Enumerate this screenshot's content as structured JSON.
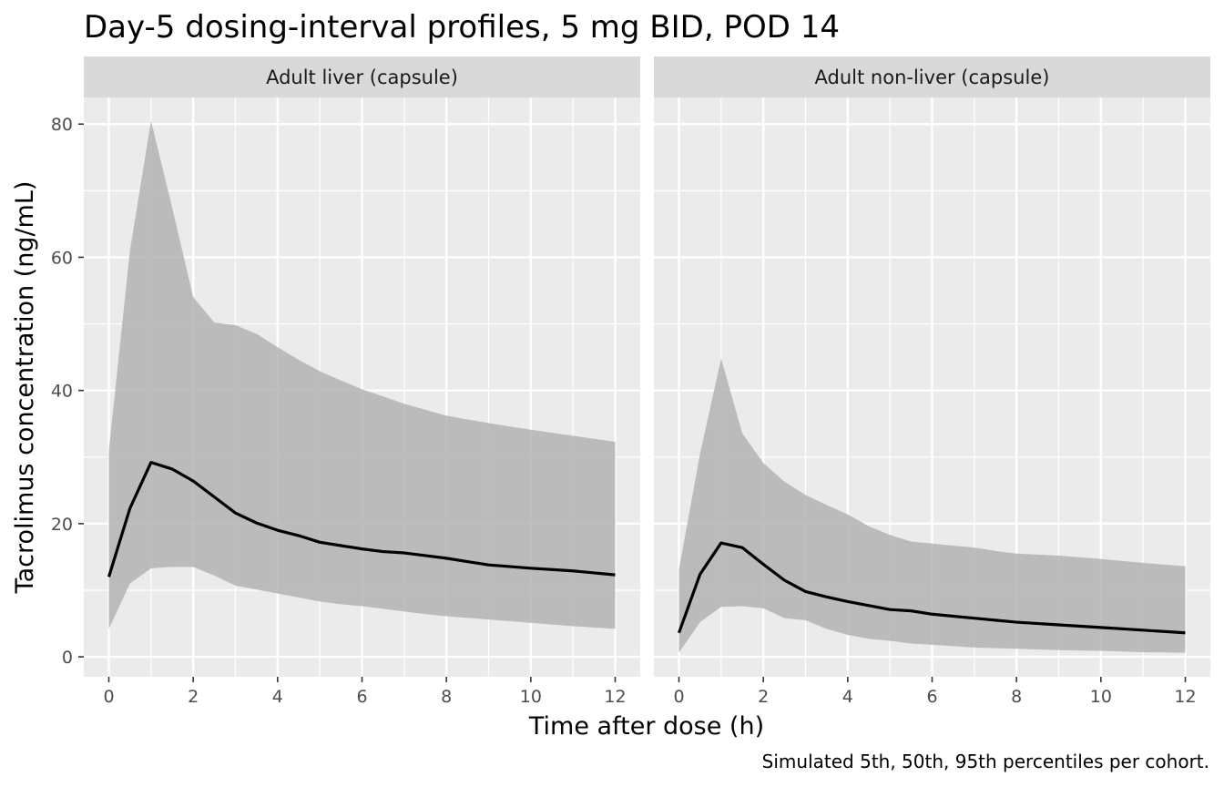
{
  "title": "Day-5 dosing-interval profiles, 5 mg BID, POD 14",
  "caption": "Simulated 5th, 50th, 95th percentiles per cohort.",
  "colors": {
    "panel_bg": "#EBEBEB",
    "strip_bg": "#D9D9D9",
    "grid_major": "#FFFFFF",
    "ribbon": "#B3B3B3",
    "median_line": "#000000"
  },
  "chart_data": {
    "type": "area",
    "xlabel": "Time after dose (h)",
    "ylabel": "Tacrolimus concentration (ng/mL)",
    "xlim": [
      0,
      12
    ],
    "ylim": [
      -3,
      84
    ],
    "x_ticks": [
      0,
      2,
      4,
      6,
      8,
      10,
      12
    ],
    "y_ticks": [
      0,
      20,
      40,
      60,
      80
    ],
    "grid": true,
    "facets": [
      {
        "label": "Adult liver (capsule)",
        "x": [
          0,
          0.5,
          1,
          1.5,
          2,
          2.5,
          3,
          3.5,
          4,
          4.5,
          5,
          5.5,
          6,
          6.5,
          7,
          7.5,
          8,
          9,
          10,
          11,
          12
        ],
        "p5": [
          4.2,
          11,
          13.3,
          13.5,
          13.5,
          12.2,
          10.7,
          10.1,
          9.5,
          8.9,
          8.3,
          7.9,
          7.6,
          7.2,
          6.8,
          6.4,
          6.1,
          5.6,
          5.1,
          4.6,
          4.2
        ],
        "p50": [
          12,
          22.3,
          29.2,
          28.2,
          26.4,
          24,
          21.6,
          20.1,
          19,
          18.2,
          17.2,
          16.7,
          16.2,
          15.8,
          15.6,
          15.2,
          14.8,
          13.8,
          13.3,
          12.9,
          12.3
        ],
        "p95": [
          31,
          61,
          80.5,
          67.5,
          54,
          50.2,
          49.8,
          48.5,
          46.5,
          44.6,
          42.9,
          41.5,
          40.2,
          39.1,
          38,
          37.1,
          36.2,
          35.1,
          34.1,
          33.2,
          32.3
        ]
      },
      {
        "label": "Adult non-liver (capsule)",
        "x": [
          0,
          0.5,
          1,
          1.5,
          2,
          2.5,
          3,
          3.5,
          4,
          4.5,
          5,
          5.5,
          6,
          6.5,
          7,
          7.5,
          8,
          9,
          10,
          11,
          12
        ],
        "p5": [
          0.6,
          5.2,
          7.5,
          7.6,
          7.3,
          5.8,
          5.5,
          4.2,
          3.3,
          2.7,
          2.4,
          2,
          1.8,
          1.6,
          1.4,
          1.3,
          1.2,
          1,
          0.9,
          0.7,
          0.6
        ],
        "p50": [
          3.6,
          12.4,
          17.1,
          16.4,
          13.9,
          11.5,
          9.8,
          9,
          8.3,
          7.7,
          7.1,
          6.9,
          6.4,
          6.1,
          5.8,
          5.5,
          5.2,
          4.8,
          4.4,
          4,
          3.6
        ],
        "p95": [
          13.1,
          30.5,
          44.8,
          33.6,
          29.1,
          26.3,
          24.3,
          22.8,
          21.4,
          19.6,
          18.3,
          17.3,
          17,
          16.7,
          16.4,
          15.9,
          15.5,
          15.2,
          14.7,
          14.1,
          13.6
        ]
      }
    ]
  }
}
